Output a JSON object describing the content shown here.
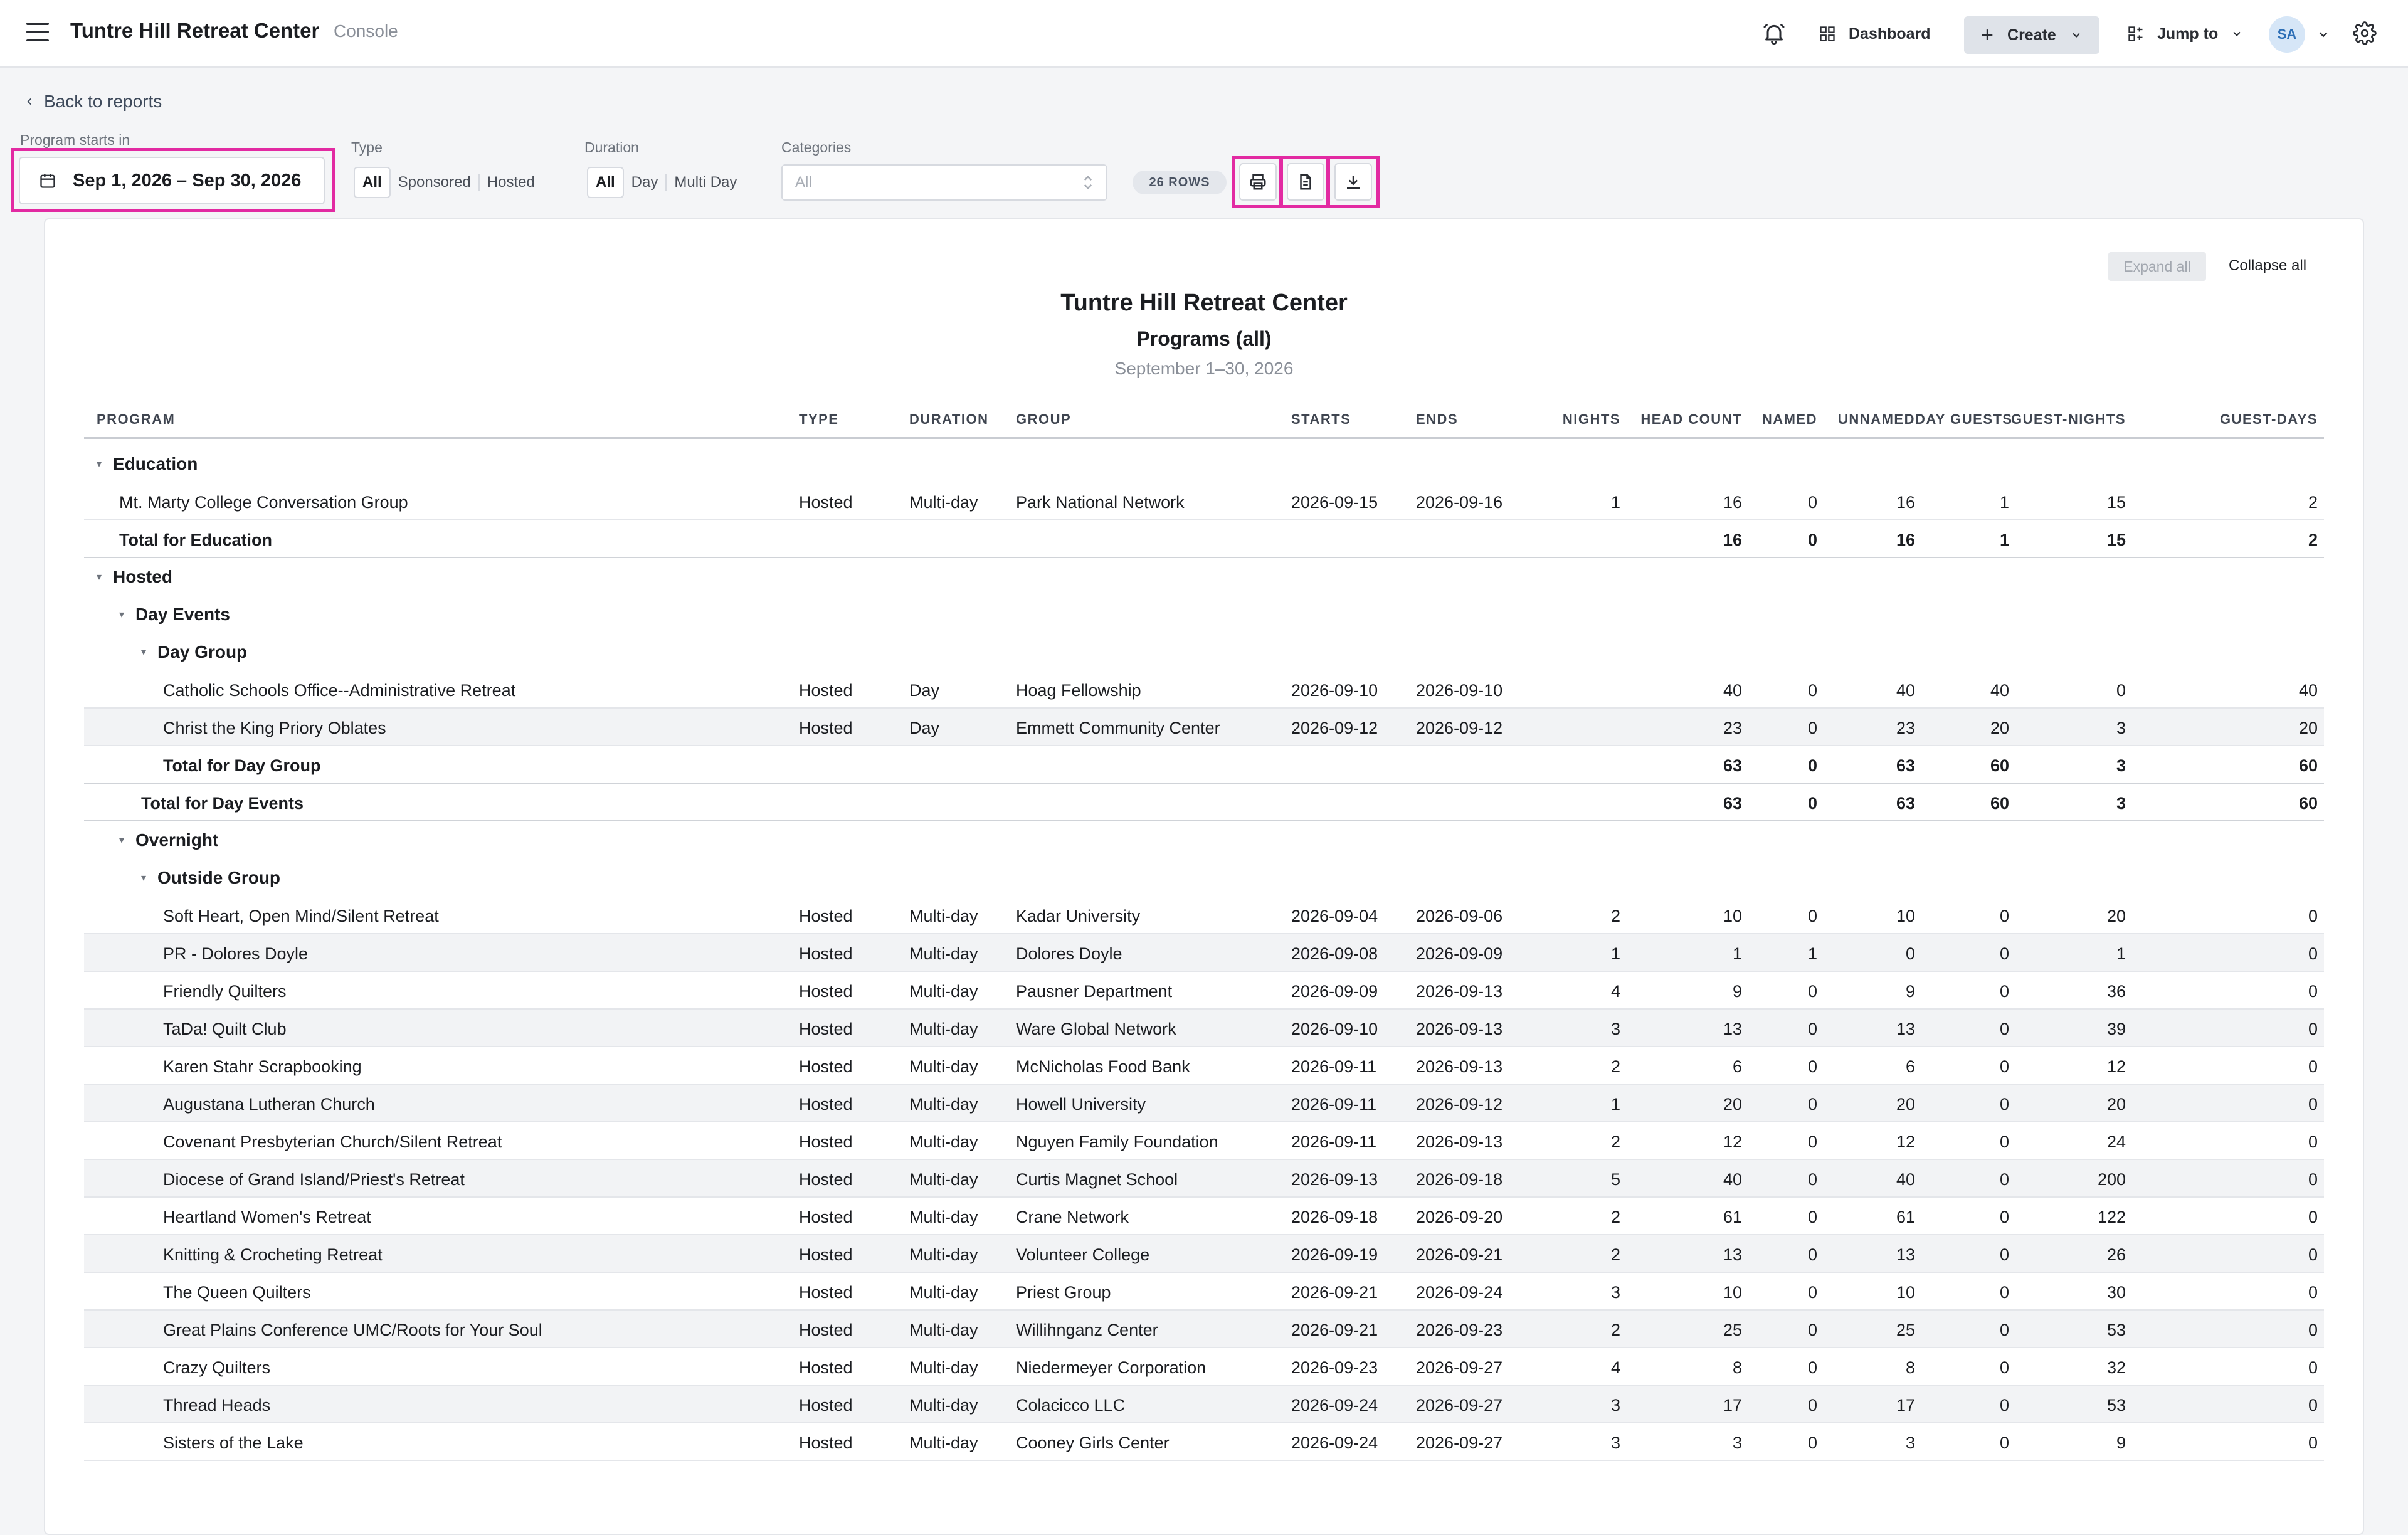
{
  "header": {
    "title": "Tuntre Hill Retreat Center",
    "subtitle": "Console",
    "dashboard_label": "Dashboard",
    "create_label": "Create",
    "jump_label": "Jump to",
    "avatar_initials": "SA"
  },
  "nav": {
    "back_label": "Back to reports"
  },
  "filters": {
    "program_starts_label": "Program starts in",
    "date_range": "Sep 1, 2026 – Sep 30, 2026",
    "type_label": "Type",
    "type_options": [
      "All",
      "Sponsored",
      "Hosted"
    ],
    "duration_label": "Duration",
    "duration_options": [
      "All",
      "Day",
      "Multi Day"
    ],
    "categories_label": "Categories",
    "categories_placeholder": "All",
    "rows_badge": "26 ROWS"
  },
  "report": {
    "expand_all": "Expand all",
    "collapse_all": "Collapse all",
    "title": "Tuntre Hill Retreat Center",
    "subtitle": "Programs (all)",
    "date_range": "September 1–30, 2026",
    "columns": [
      "PROGRAM",
      "TYPE",
      "DURATION",
      "GROUP",
      "STARTS",
      "ENDS",
      "NIGHTS",
      "HEAD COUNT",
      "NAMED",
      "UNNAMED",
      "DAY GUESTS",
      "GUEST-NIGHTS",
      "GUEST-DAYS"
    ],
    "rows": [
      {
        "kind": "group",
        "level": 0,
        "label": "Education"
      },
      {
        "kind": "data",
        "level": 0,
        "alt": false,
        "cells": [
          "Mt. Marty College Conversation Group",
          "Hosted",
          "Multi-day",
          "Park National Network",
          "2026-09-15",
          "2026-09-16",
          "1",
          "16",
          "0",
          "16",
          "1",
          "15",
          "2"
        ]
      },
      {
        "kind": "total",
        "level": 0,
        "label": "Total for Education",
        "values": [
          "16",
          "0",
          "16",
          "1",
          "15",
          "2"
        ]
      },
      {
        "kind": "group",
        "level": 0,
        "label": "Hosted"
      },
      {
        "kind": "group",
        "level": 1,
        "label": "Day Events"
      },
      {
        "kind": "group",
        "level": 2,
        "label": "Day Group"
      },
      {
        "kind": "data",
        "level": 2,
        "alt": false,
        "cells": [
          "Catholic Schools Office--Administrative Retreat",
          "Hosted",
          "Day",
          "Hoag Fellowship",
          "2026-09-10",
          "2026-09-10",
          "",
          "40",
          "0",
          "40",
          "40",
          "0",
          "40"
        ]
      },
      {
        "kind": "data",
        "level": 2,
        "alt": true,
        "cells": [
          "Christ the King Priory Oblates",
          "Hosted",
          "Day",
          "Emmett Community Center",
          "2026-09-12",
          "2026-09-12",
          "",
          "23",
          "0",
          "23",
          "20",
          "3",
          "20"
        ]
      },
      {
        "kind": "total",
        "level": 2,
        "label": "Total for Day Group",
        "values": [
          "63",
          "0",
          "63",
          "60",
          "3",
          "60"
        ]
      },
      {
        "kind": "total",
        "level": 1,
        "label": "Total for Day Events",
        "values": [
          "63",
          "0",
          "63",
          "60",
          "3",
          "60"
        ]
      },
      {
        "kind": "group",
        "level": 1,
        "label": "Overnight"
      },
      {
        "kind": "group",
        "level": 2,
        "label": "Outside Group"
      },
      {
        "kind": "data",
        "level": 2,
        "alt": false,
        "cells": [
          "Soft Heart, Open Mind/Silent Retreat",
          "Hosted",
          "Multi-day",
          "Kadar University",
          "2026-09-04",
          "2026-09-06",
          "2",
          "10",
          "0",
          "10",
          "0",
          "20",
          "0"
        ]
      },
      {
        "kind": "data",
        "level": 2,
        "alt": true,
        "cells": [
          "PR - Dolores Doyle",
          "Hosted",
          "Multi-day",
          "Dolores Doyle",
          "2026-09-08",
          "2026-09-09",
          "1",
          "1",
          "1",
          "0",
          "0",
          "1",
          "0"
        ]
      },
      {
        "kind": "data",
        "level": 2,
        "alt": false,
        "cells": [
          "Friendly Quilters",
          "Hosted",
          "Multi-day",
          "Pausner Department",
          "2026-09-09",
          "2026-09-13",
          "4",
          "9",
          "0",
          "9",
          "0",
          "36",
          "0"
        ]
      },
      {
        "kind": "data",
        "level": 2,
        "alt": true,
        "cells": [
          "TaDa! Quilt Club",
          "Hosted",
          "Multi-day",
          "Ware Global Network",
          "2026-09-10",
          "2026-09-13",
          "3",
          "13",
          "0",
          "13",
          "0",
          "39",
          "0"
        ]
      },
      {
        "kind": "data",
        "level": 2,
        "alt": false,
        "cells": [
          "Karen Stahr Scrapbooking",
          "Hosted",
          "Multi-day",
          "McNicholas Food Bank",
          "2026-09-11",
          "2026-09-13",
          "2",
          "6",
          "0",
          "6",
          "0",
          "12",
          "0"
        ]
      },
      {
        "kind": "data",
        "level": 2,
        "alt": true,
        "cells": [
          "Augustana Lutheran Church",
          "Hosted",
          "Multi-day",
          "Howell University",
          "2026-09-11",
          "2026-09-12",
          "1",
          "20",
          "0",
          "20",
          "0",
          "20",
          "0"
        ]
      },
      {
        "kind": "data",
        "level": 2,
        "alt": false,
        "cells": [
          "Covenant Presbyterian Church/Silent Retreat",
          "Hosted",
          "Multi-day",
          "Nguyen Family Foundation",
          "2026-09-11",
          "2026-09-13",
          "2",
          "12",
          "0",
          "12",
          "0",
          "24",
          "0"
        ]
      },
      {
        "kind": "data",
        "level": 2,
        "alt": true,
        "cells": [
          "Diocese of Grand Island/Priest's Retreat",
          "Hosted",
          "Multi-day",
          "Curtis Magnet School",
          "2026-09-13",
          "2026-09-18",
          "5",
          "40",
          "0",
          "40",
          "0",
          "200",
          "0"
        ]
      },
      {
        "kind": "data",
        "level": 2,
        "alt": false,
        "cells": [
          "Heartland Women's Retreat",
          "Hosted",
          "Multi-day",
          "Crane Network",
          "2026-09-18",
          "2026-09-20",
          "2",
          "61",
          "0",
          "61",
          "0",
          "122",
          "0"
        ]
      },
      {
        "kind": "data",
        "level": 2,
        "alt": true,
        "cells": [
          "Knitting & Crocheting Retreat",
          "Hosted",
          "Multi-day",
          "Volunteer College",
          "2026-09-19",
          "2026-09-21",
          "2",
          "13",
          "0",
          "13",
          "0",
          "26",
          "0"
        ]
      },
      {
        "kind": "data",
        "level": 2,
        "alt": false,
        "cells": [
          "The Queen Quilters",
          "Hosted",
          "Multi-day",
          "Priest Group",
          "2026-09-21",
          "2026-09-24",
          "3",
          "10",
          "0",
          "10",
          "0",
          "30",
          "0"
        ]
      },
      {
        "kind": "data",
        "level": 2,
        "alt": true,
        "cells": [
          "Great Plains Conference UMC/Roots for Your Soul",
          "Hosted",
          "Multi-day",
          "Willihnganz Center",
          "2026-09-21",
          "2026-09-23",
          "2",
          "25",
          "0",
          "25",
          "0",
          "53",
          "0"
        ]
      },
      {
        "kind": "data",
        "level": 2,
        "alt": false,
        "cells": [
          "Crazy Quilters",
          "Hosted",
          "Multi-day",
          "Niedermeyer Corporation",
          "2026-09-23",
          "2026-09-27",
          "4",
          "8",
          "0",
          "8",
          "0",
          "32",
          "0"
        ]
      },
      {
        "kind": "data",
        "level": 2,
        "alt": true,
        "cells": [
          "Thread Heads",
          "Hosted",
          "Multi-day",
          "Colacicco LLC",
          "2026-09-24",
          "2026-09-27",
          "3",
          "17",
          "0",
          "17",
          "0",
          "53",
          "0"
        ]
      },
      {
        "kind": "data",
        "level": 2,
        "alt": false,
        "cells": [
          "Sisters of the Lake",
          "Hosted",
          "Multi-day",
          "Cooney Girls Center",
          "2026-09-24",
          "2026-09-27",
          "3",
          "3",
          "0",
          "3",
          "0",
          "9",
          "0"
        ]
      }
    ]
  },
  "colors": {
    "highlight": "#e22aa2",
    "accent": "#2d6fb6"
  }
}
